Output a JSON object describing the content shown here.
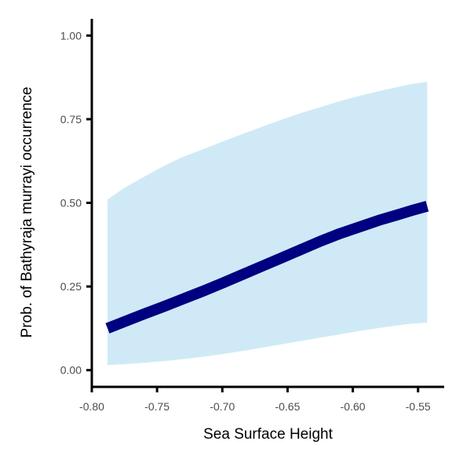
{
  "chart_data": {
    "type": "line",
    "title": "",
    "xlabel": "Sea Surface Height",
    "ylabel": "Prob. of  Bathyraja murrayi  occurrence",
    "xlim": [
      -0.8,
      -0.53
    ],
    "ylim": [
      -0.05,
      1.05
    ],
    "x_ticks": [
      -0.8,
      -0.75,
      -0.7,
      -0.65,
      -0.6,
      -0.55
    ],
    "x_tick_labels": [
      "-0.80",
      "-0.75",
      "-0.70",
      "-0.65",
      "-0.60",
      "-0.55"
    ],
    "y_ticks": [
      0.0,
      0.25,
      0.5,
      0.75,
      1.0
    ],
    "y_tick_labels": [
      "0.00",
      "0.25",
      "0.50",
      "0.75",
      "1.00"
    ],
    "grid": false,
    "legend": "none",
    "series": [
      {
        "x": [
          -0.788,
          -0.775,
          -0.76,
          -0.745,
          -0.73,
          -0.715,
          -0.7,
          -0.685,
          -0.67,
          -0.655,
          -0.64,
          -0.625,
          -0.61,
          -0.595,
          -0.58,
          -0.565,
          -0.555,
          -0.543
        ],
        "y": [
          0.125,
          0.145,
          0.168,
          0.19,
          0.213,
          0.236,
          0.26,
          0.285,
          0.31,
          0.335,
          0.36,
          0.385,
          0.408,
          0.428,
          0.448,
          0.465,
          0.477,
          0.49
        ],
        "lower": [
          0.015,
          0.018,
          0.022,
          0.027,
          0.033,
          0.04,
          0.048,
          0.057,
          0.067,
          0.077,
          0.087,
          0.097,
          0.107,
          0.117,
          0.126,
          0.134,
          0.139,
          0.142
        ],
        "upper": [
          0.51,
          0.545,
          0.578,
          0.61,
          0.638,
          0.66,
          0.683,
          0.705,
          0.727,
          0.748,
          0.768,
          0.786,
          0.804,
          0.82,
          0.834,
          0.847,
          0.855,
          0.862
        ]
      }
    ],
    "colors": {
      "line": "#000080",
      "ribbon": "#cfeaf6",
      "axis": "#000000",
      "tick_text": "#4d4d4d"
    }
  }
}
